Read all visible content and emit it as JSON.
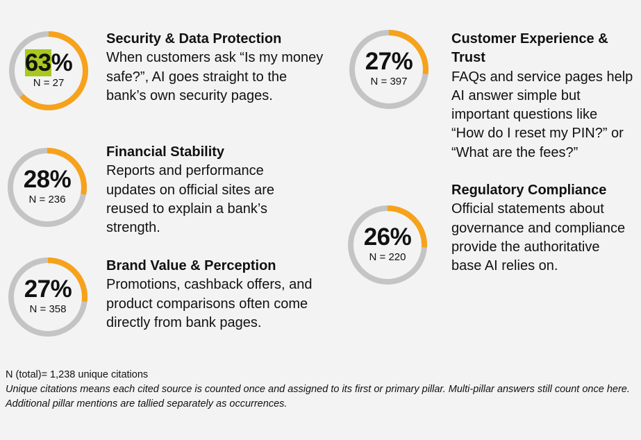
{
  "colors": {
    "accent": "#f7a21b",
    "track": "#c4c4c4",
    "highlight": "#a8c81f",
    "background": "#f3f3f3"
  },
  "chart_data": {
    "type": "pie",
    "items": [
      {
        "percent_label": "63%",
        "percent_lead": "63",
        "percent_tail": "%",
        "value": 63,
        "n_label": "N = 27",
        "n": 27,
        "title": "Security & Data Protection",
        "description": "When customers ask “Is my money safe?”, AI goes straight to the bank’s own security pages."
      },
      {
        "percent_label": "28%",
        "value": 28,
        "n_label": "N = 236",
        "n": 236,
        "title": "Financial Stability",
        "description": "Reports and performance updates on official sites are reused to explain a bank’s strength."
      },
      {
        "percent_label": "27%",
        "value": 27,
        "n_label": "N = 358",
        "n": 358,
        "title": "Brand Value & Perception",
        "description": "Promotions, cashback offers, and product comparisons often come directly from bank pages."
      },
      {
        "percent_label": "27%",
        "value": 27,
        "n_label": "N = 397",
        "n": 397,
        "title": "Customer Experience & Trust",
        "description": "FAQs and service pages help AI answer simple but important questions like “How do I reset my PIN?” or “What are the fees?”"
      },
      {
        "percent_label": "26%",
        "value": 26,
        "n_label": "N = 220",
        "n": 220,
        "title": "Regulatory Compliance",
        "description": "Official statements about governance and compliance provide the authoritative base AI relies on."
      }
    ]
  },
  "footer": {
    "total": "N (total)= 1,238 unique citations",
    "note": "Unique citations means each cited source is counted once and assigned to its first or primary pillar. Multi-pillar answers still count once here. Additional pillar mentions are tallied separately as occurrences."
  }
}
